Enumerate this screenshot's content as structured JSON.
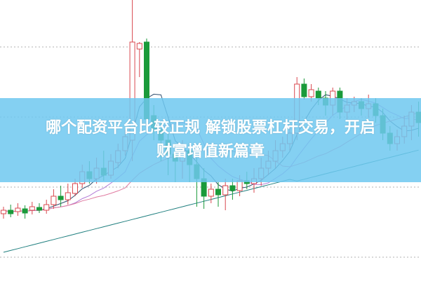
{
  "banner": {
    "line1": "哪个配资平台比较正规 解锁股票杠杆交易，开启",
    "line2": "财富增值新篇章",
    "background": "#6ec8f0"
  },
  "chart_data": {
    "type": "candlestick",
    "grid": "horizontal dotted",
    "colors": {
      "up": "#d9484f",
      "down": "#1a9a3a",
      "ma5": "#2f4f6f",
      "ma10": "#b27bd6",
      "ma20": "#e07aa0",
      "ma60": "#1f7f7f",
      "grid": "#b0b0b0"
    },
    "moving_averages": [
      5,
      10,
      20,
      60
    ],
    "candles_ohlc": [
      [
        95,
        105,
        88,
        100
      ],
      [
        100,
        108,
        90,
        95
      ],
      [
        98,
        110,
        92,
        103
      ],
      [
        102,
        107,
        88,
        96
      ],
      [
        100,
        112,
        94,
        105
      ],
      [
        104,
        110,
        96,
        100
      ],
      [
        100,
        115,
        95,
        108
      ],
      [
        108,
        130,
        102,
        120
      ],
      [
        120,
        135,
        105,
        115
      ],
      [
        115,
        138,
        108,
        125
      ],
      [
        124,
        145,
        120,
        138
      ],
      [
        138,
        165,
        132,
        155
      ],
      [
        155,
        170,
        138,
        145
      ],
      [
        145,
        175,
        138,
        160
      ],
      [
        160,
        185,
        142,
        150
      ],
      [
        150,
        180,
        145,
        170
      ],
      [
        168,
        195,
        160,
        185
      ],
      [
        185,
        215,
        178,
        205
      ],
      [
        200,
        400,
        170,
        340
      ],
      [
        330,
        340,
        290,
        338
      ],
      [
        340,
        345,
        225,
        230
      ],
      [
        235,
        250,
        200,
        215
      ],
      [
        215,
        225,
        170,
        200
      ],
      [
        200,
        210,
        150,
        180
      ],
      [
        180,
        195,
        140,
        170
      ],
      [
        170,
        200,
        145,
        185
      ],
      [
        185,
        195,
        140,
        165
      ],
      [
        165,
        175,
        105,
        145
      ],
      [
        145,
        160,
        102,
        120
      ],
      [
        120,
        138,
        110,
        130
      ],
      [
        130,
        140,
        105,
        122
      ],
      [
        122,
        145,
        100,
        135
      ],
      [
        135,
        145,
        115,
        128
      ],
      [
        128,
        150,
        120,
        142
      ],
      [
        142,
        155,
        130,
        138
      ],
      [
        138,
        160,
        125,
        145
      ],
      [
        145,
        175,
        135,
        160
      ],
      [
        160,
        185,
        150,
        170
      ],
      [
        170,
        200,
        160,
        185
      ],
      [
        185,
        205,
        175,
        195
      ],
      [
        195,
        220,
        185,
        210
      ],
      [
        210,
        290,
        200,
        280
      ],
      [
        280,
        288,
        258,
        262
      ],
      [
        262,
        280,
        255,
        272
      ],
      [
        270,
        275,
        250,
        260
      ],
      [
        260,
        270,
        235,
        250
      ],
      [
        250,
        275,
        235,
        270
      ],
      [
        270,
        275,
        230,
        240
      ],
      [
        240,
        260,
        230,
        250
      ],
      [
        250,
        262,
        240,
        255
      ],
      [
        255,
        260,
        235,
        245
      ],
      [
        245,
        265,
        232,
        252
      ],
      [
        252,
        260,
        225,
        235
      ],
      [
        235,
        245,
        200,
        210
      ],
      [
        210,
        220,
        185,
        195
      ],
      [
        195,
        215,
        185,
        205
      ],
      [
        205,
        235,
        195,
        220
      ],
      [
        220,
        250,
        200,
        240
      ],
      [
        240,
        255,
        205,
        225
      ]
    ]
  }
}
